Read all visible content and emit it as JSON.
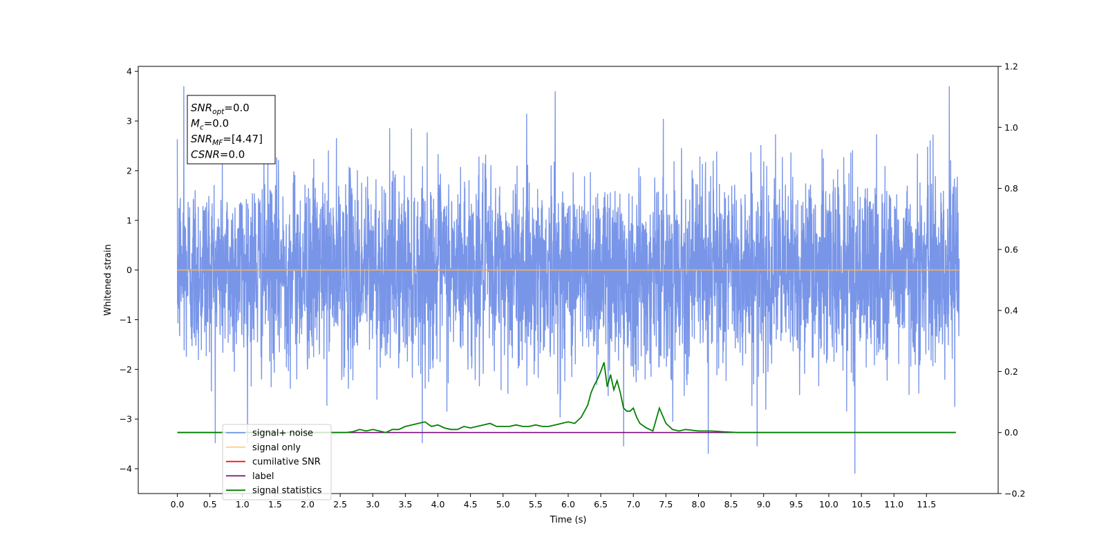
{
  "chart_data": {
    "type": "line",
    "xlabel": "Time (s)",
    "ylabel": "Whitened strain",
    "x_ticks": [
      0.0,
      0.5,
      1.0,
      1.5,
      2.0,
      2.5,
      3.0,
      3.5,
      4.0,
      4.5,
      5.0,
      5.5,
      6.0,
      6.5,
      7.0,
      7.5,
      8.0,
      8.5,
      9.0,
      9.5,
      10.0,
      10.5,
      11.0,
      11.5
    ],
    "x_tick_labels": [
      "0.0",
      "0.5",
      "1.0",
      "1.5",
      "2.0",
      "2.5",
      "3.0",
      "3.5",
      "4.0",
      "4.5",
      "5.0",
      "5.5",
      "6.0",
      "6.5",
      "7.0",
      "7.5",
      "8.0",
      "8.5",
      "9.0",
      "9.5",
      "10.0",
      "10.5",
      "11.0",
      "11.5"
    ],
    "xlim": [
      -0.6,
      12.6
    ],
    "ylim_left": [
      -4.5,
      4.1
    ],
    "ylim_right": [
      -0.2,
      1.2
    ],
    "y_ticks_left": [
      -4,
      -3,
      -2,
      -1,
      0,
      1,
      2,
      3,
      4
    ],
    "y_tick_labels_left": [
      "−4",
      "−3",
      "−2",
      "−1",
      "0",
      "1",
      "2",
      "3",
      "4"
    ],
    "y_ticks_right": [
      -0.2,
      0.0,
      0.2,
      0.4,
      0.6,
      0.8,
      1.0,
      1.2
    ],
    "y_tick_labels_right": [
      "−0.2",
      "0.0",
      "0.2",
      "0.4",
      "0.6",
      "0.8",
      "1.0",
      "1.2"
    ],
    "noise": {
      "x_range": [
        0.0,
        12.0
      ],
      "approx_envelope": [
        -4.1,
        3.7
      ],
      "peaks": [
        {
          "x": 0.1,
          "y": 3.7
        },
        {
          "x": 5.8,
          "y": 3.6
        },
        {
          "x": 11.85,
          "y": 3.7
        },
        {
          "x": 10.4,
          "y": -4.1
        },
        {
          "x": 8.15,
          "y": -3.7
        },
        {
          "x": 8.9,
          "y": -3.55
        },
        {
          "x": 6.85,
          "y": -3.55
        }
      ]
    },
    "series": [
      {
        "name": "signal+ noise",
        "color": "#7895e8",
        "axis": "left",
        "style": "dense-noise"
      },
      {
        "name": "signal only",
        "color": "#f5b35a",
        "axis": "left",
        "x": [
          0.0,
          12.0
        ],
        "y": [
          0.0,
          0.0
        ]
      },
      {
        "name": "cumilative SNR",
        "color": "#ff0000",
        "axis": "right",
        "x": [],
        "y": []
      },
      {
        "name": "label",
        "color": "#7b0f7b",
        "axis": "right",
        "x": [
          0.0,
          11.95
        ],
        "y": [
          0.0,
          0.0
        ]
      },
      {
        "name": "signal statistics",
        "color": "#008000",
        "axis": "right",
        "x": [
          0.0,
          2.4,
          2.6,
          2.7,
          2.8,
          2.9,
          3.0,
          3.1,
          3.2,
          3.3,
          3.4,
          3.5,
          3.6,
          3.7,
          3.8,
          3.9,
          4.0,
          4.1,
          4.2,
          4.3,
          4.4,
          4.5,
          4.6,
          4.7,
          4.8,
          4.9,
          5.0,
          5.1,
          5.2,
          5.3,
          5.4,
          5.5,
          5.6,
          5.7,
          5.8,
          5.9,
          6.0,
          6.1,
          6.2,
          6.3,
          6.35,
          6.4,
          6.45,
          6.5,
          6.55,
          6.6,
          6.65,
          6.7,
          6.75,
          6.8,
          6.85,
          6.9,
          6.95,
          7.0,
          7.05,
          7.1,
          7.2,
          7.3,
          7.4,
          7.5,
          7.6,
          7.7,
          7.8,
          8.0,
          8.2,
          8.4,
          8.6,
          9.0,
          10.0,
          11.0,
          11.95
        ],
        "y": [
          0.0,
          0.0,
          0.0,
          0.003,
          0.01,
          0.005,
          0.01,
          0.005,
          0.0,
          0.01,
          0.01,
          0.02,
          0.025,
          0.03,
          0.035,
          0.02,
          0.025,
          0.015,
          0.01,
          0.01,
          0.02,
          0.015,
          0.02,
          0.025,
          0.03,
          0.02,
          0.02,
          0.02,
          0.025,
          0.02,
          0.02,
          0.025,
          0.02,
          0.02,
          0.025,
          0.03,
          0.035,
          0.03,
          0.05,
          0.09,
          0.13,
          0.155,
          0.175,
          0.2,
          0.23,
          0.15,
          0.19,
          0.14,
          0.17,
          0.13,
          0.08,
          0.07,
          0.07,
          0.08,
          0.05,
          0.03,
          0.015,
          0.005,
          0.08,
          0.03,
          0.01,
          0.005,
          0.01,
          0.005,
          0.005,
          0.002,
          0.0,
          0.0,
          0.0,
          0.0,
          0.0
        ]
      }
    ],
    "legend_position": "lower-left",
    "annotation_box": {
      "lines": [
        {
          "main": "SNR",
          "sub": "opt",
          "rest": "=0.0"
        },
        {
          "main": "M",
          "sub": "c",
          "rest": "=0.0"
        },
        {
          "main": "SNR",
          "sub": "MF",
          "rest": "=[4.47]"
        },
        {
          "main": "CSNR",
          "sub": "",
          "rest": "=0.0"
        }
      ]
    }
  }
}
